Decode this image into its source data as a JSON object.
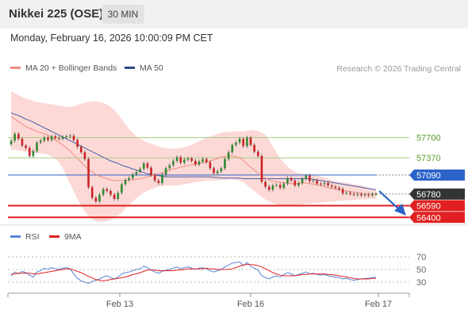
{
  "header": {
    "title": "Nikkei 225 (OSE)",
    "timeframe": "30 MIN"
  },
  "datetime": "Monday, February 16, 2026 10:00:09 PM CET",
  "legend": {
    "ma20": "MA 20 + Bollinger Bands",
    "ma50": "MA 50",
    "rsi": "RSI",
    "rsi_ma": "9MA"
  },
  "credit": "Research © 2026 Trading Central",
  "colors": {
    "candle_up": "#2f8a32",
    "candle_down": "#cc2222",
    "bollinger_fill": "#fcd9d6",
    "ma20": "#f08c80",
    "ma50": "#4a60a8",
    "resistance": "#a6cf7f",
    "pivot": "#2b63c8",
    "support": "#e02020",
    "rsi": "#5a84d8",
    "rsi_ma": "#e02020"
  },
  "chart_data": {
    "type": "candlestick",
    "price_axis": {
      "min": 56300,
      "max": 58650
    },
    "x_labels": [
      "Feb 13",
      "Feb 16",
      "Feb 17"
    ],
    "levels": [
      {
        "value": 57700,
        "label": "57700",
        "kind": "resistance"
      },
      {
        "value": 57370,
        "label": "57370",
        "kind": "resistance"
      },
      {
        "value": 57090,
        "label": "57090",
        "kind": "pivot"
      },
      {
        "value": 56780,
        "label": "56780",
        "kind": "last"
      },
      {
        "value": 56590,
        "label": "56590",
        "kind": "support"
      },
      {
        "value": 56400,
        "label": "56400",
        "kind": "support"
      }
    ],
    "closes": [
      57650,
      57760,
      57680,
      57570,
      57530,
      57400,
      57480,
      57620,
      57650,
      57700,
      57660,
      57720,
      57690,
      57680,
      57710,
      57720,
      57730,
      57660,
      57550,
      57460,
      57350,
      56890,
      56720,
      56660,
      56770,
      56860,
      56830,
      56770,
      56700,
      56800,
      56940,
      57010,
      57040,
      57100,
      57140,
      57190,
      57280,
      57210,
      57090,
      57000,
      56960,
      57100,
      57200,
      57250,
      57320,
      57380,
      57290,
      57340,
      57360,
      57320,
      57260,
      57310,
      57350,
      57300,
      57200,
      57120,
      57150,
      57200,
      57350,
      57460,
      57580,
      57620,
      57680,
      57560,
      57700,
      57580,
      57470,
      57400,
      56980,
      56900,
      56850,
      56920,
      56930,
      56880,
      56950,
      57040,
      57000,
      56920,
      56960,
      57030,
      57080,
      56990,
      57000,
      56950,
      56940,
      56960,
      56920,
      56900,
      56880,
      56860,
      56790,
      56800,
      56780,
      56770,
      56780,
      56760,
      56770,
      56760,
      56780,
      56780
    ],
    "ma20": [
      58040,
      58000,
      57960,
      57920,
      57880,
      57850,
      57830,
      57800,
      57780,
      57760,
      57740,
      57700,
      57660,
      57620,
      57580,
      57530,
      57480,
      57420,
      57360,
      57300,
      57240,
      57180,
      57140,
      57100,
      57070,
      57050,
      57030,
      57010,
      57000,
      57000,
      57000,
      57000,
      57010,
      57010,
      57020,
      57030,
      57040,
      57060,
      57080,
      57100,
      57110,
      57120,
      57150,
      57170,
      57190,
      57200,
      57220,
      57230,
      57240,
      57260,
      57270,
      57280,
      57290,
      57300,
      57320,
      57340,
      57360,
      57380,
      57390,
      57400,
      57400,
      57390,
      57370,
      57330,
      57270,
      57220,
      57170,
      57120,
      57070,
      57040,
      57010,
      56990,
      56980,
      56970,
      56960,
      56960,
      56950,
      56950,
      56950,
      56960,
      56960,
      56950,
      56940,
      56930,
      56920,
      56900,
      56880,
      56870,
      56860,
      56850,
      56840,
      56830,
      56820,
      56810,
      56800,
      56790,
      56780,
      56780,
      56780,
      56780
    ],
    "ma50": [
      58100,
      58080,
      58060,
      58030,
      58000,
      57980,
      57950,
      57920,
      57890,
      57860,
      57830,
      57800,
      57770,
      57740,
      57710,
      57680,
      57650,
      57620,
      57590,
      57560,
      57530,
      57500,
      57470,
      57440,
      57410,
      57380,
      57350,
      57320,
      57300,
      57280,
      57250,
      57230,
      57210,
      57190,
      57170,
      57150,
      57130,
      57110,
      57100,
      57090,
      57080,
      57070,
      57060,
      57060,
      57060,
      57060,
      57060,
      57060,
      57060,
      57060,
      57060,
      57060,
      57060,
      57060,
      57060,
      57050,
      57050,
      57040,
      57040,
      57040,
      57040,
      57040,
      57040,
      57030,
      57030,
      57030,
      57030,
      57030,
      57030,
      57030,
      57030,
      57030,
      57030,
      57030,
      57030,
      57030,
      57030,
      57030,
      57030,
      57030,
      57030,
      57030,
      57020,
      57010,
      57000,
      56990,
      56980,
      56970,
      56960,
      56950,
      56940,
      56930,
      56920,
      56910,
      56900,
      56890,
      56880,
      56870,
      56860,
      56850
    ],
    "bb_upper": [
      58450,
      58420,
      58390,
      58360,
      58340,
      58320,
      58300,
      58280,
      58270,
      58260,
      58250,
      58240,
      58230,
      58220,
      58210,
      58200,
      58200,
      58210,
      58230,
      58250,
      58270,
      58280,
      58290,
      58290,
      58280,
      58260,
      58240,
      58200,
      58150,
      58080,
      58000,
      57920,
      57840,
      57780,
      57720,
      57680,
      57650,
      57620,
      57600,
      57580,
      57560,
      57540,
      57530,
      57520,
      57520,
      57520,
      57530,
      57540,
      57560,
      57580,
      57610,
      57640,
      57670,
      57700,
      57720,
      57740,
      57760,
      57780,
      57790,
      57790,
      57800,
      57800,
      57800,
      57800,
      57810,
      57820,
      57820,
      57810,
      57780,
      57740,
      57660,
      57560,
      57460,
      57360,
      57290,
      57230,
      57180,
      57140,
      57120,
      57110,
      57100,
      57100,
      57090,
      57080,
      57060,
      57050,
      57030,
      57010,
      56990,
      56980,
      56970,
      56960,
      56950,
      56940,
      56930,
      56920,
      56900,
      56880,
      56860,
      56850
    ],
    "bb_lower": [
      57500,
      57500,
      57490,
      57480,
      57470,
      57460,
      57450,
      57450,
      57440,
      57440,
      57420,
      57390,
      57350,
      57300,
      57200,
      57080,
      56950,
      56820,
      56700,
      56590,
      56500,
      56420,
      56370,
      56340,
      56330,
      56330,
      56340,
      56360,
      56390,
      56430,
      56480,
      56540,
      56600,
      56660,
      56710,
      56760,
      56800,
      56830,
      56860,
      56880,
      56900,
      56910,
      56920,
      56920,
      56920,
      56920,
      56930,
      56940,
      56950,
      56960,
      56970,
      56980,
      56990,
      57000,
      57000,
      57000,
      57000,
      57010,
      57010,
      57020,
      57020,
      57010,
      57000,
      56970,
      56930,
      56880,
      56830,
      56780,
      56730,
      56690,
      56660,
      56630,
      56610,
      56590,
      56580,
      56580,
      56580,
      56590,
      56600,
      56610,
      56620,
      56620,
      56630,
      56640,
      56640,
      56650,
      56650,
      56660,
      56660,
      56670,
      56670,
      56680,
      56680,
      56680,
      56690,
      56690,
      56690,
      56700,
      56700,
      56700
    ],
    "rsi_axis": {
      "min": 20,
      "max": 80,
      "ticks": [
        70,
        50,
        30
      ]
    },
    "rsi": [
      40,
      46,
      43,
      47,
      45,
      41,
      38,
      46,
      48,
      52,
      50,
      53,
      51,
      50,
      52,
      53,
      51,
      43,
      36,
      32,
      30,
      28,
      31,
      33,
      35,
      38,
      40,
      37,
      35,
      38,
      43,
      45,
      46,
      48,
      50,
      51,
      55,
      53,
      49,
      46,
      44,
      47,
      49,
      50,
      52,
      54,
      51,
      53,
      54,
      52,
      50,
      52,
      53,
      51,
      48,
      46,
      48,
      50,
      54,
      57,
      60,
      61,
      62,
      56,
      61,
      55,
      52,
      49,
      40,
      37,
      35,
      38,
      40,
      38,
      42,
      45,
      43,
      40,
      42,
      44,
      46,
      43,
      44,
      42,
      41,
      42,
      40,
      39,
      38,
      37,
      35,
      36,
      34,
      33,
      34,
      35,
      36,
      36,
      37,
      38
    ],
    "rsi_ma": [
      42,
      43,
      44,
      44,
      44,
      44,
      43,
      43,
      44,
      45,
      46,
      47,
      48,
      49,
      50,
      51,
      51,
      49,
      47,
      45,
      42,
      39,
      37,
      34,
      33,
      32,
      33,
      34,
      35,
      36,
      37,
      38,
      40,
      42,
      43,
      45,
      47,
      49,
      49,
      49,
      48,
      48,
      48,
      48,
      48,
      49,
      49,
      50,
      51,
      51,
      51,
      51,
      51,
      52,
      51,
      51,
      50,
      50,
      50,
      50,
      51,
      53,
      55,
      57,
      58,
      58,
      57,
      56,
      54,
      51,
      48,
      45,
      43,
      41,
      40,
      40,
      40,
      40,
      41,
      42,
      42,
      43,
      43,
      43,
      43,
      43,
      42,
      42,
      41,
      40,
      39,
      38,
      37,
      36,
      35,
      35,
      35,
      35,
      36,
      36
    ]
  }
}
